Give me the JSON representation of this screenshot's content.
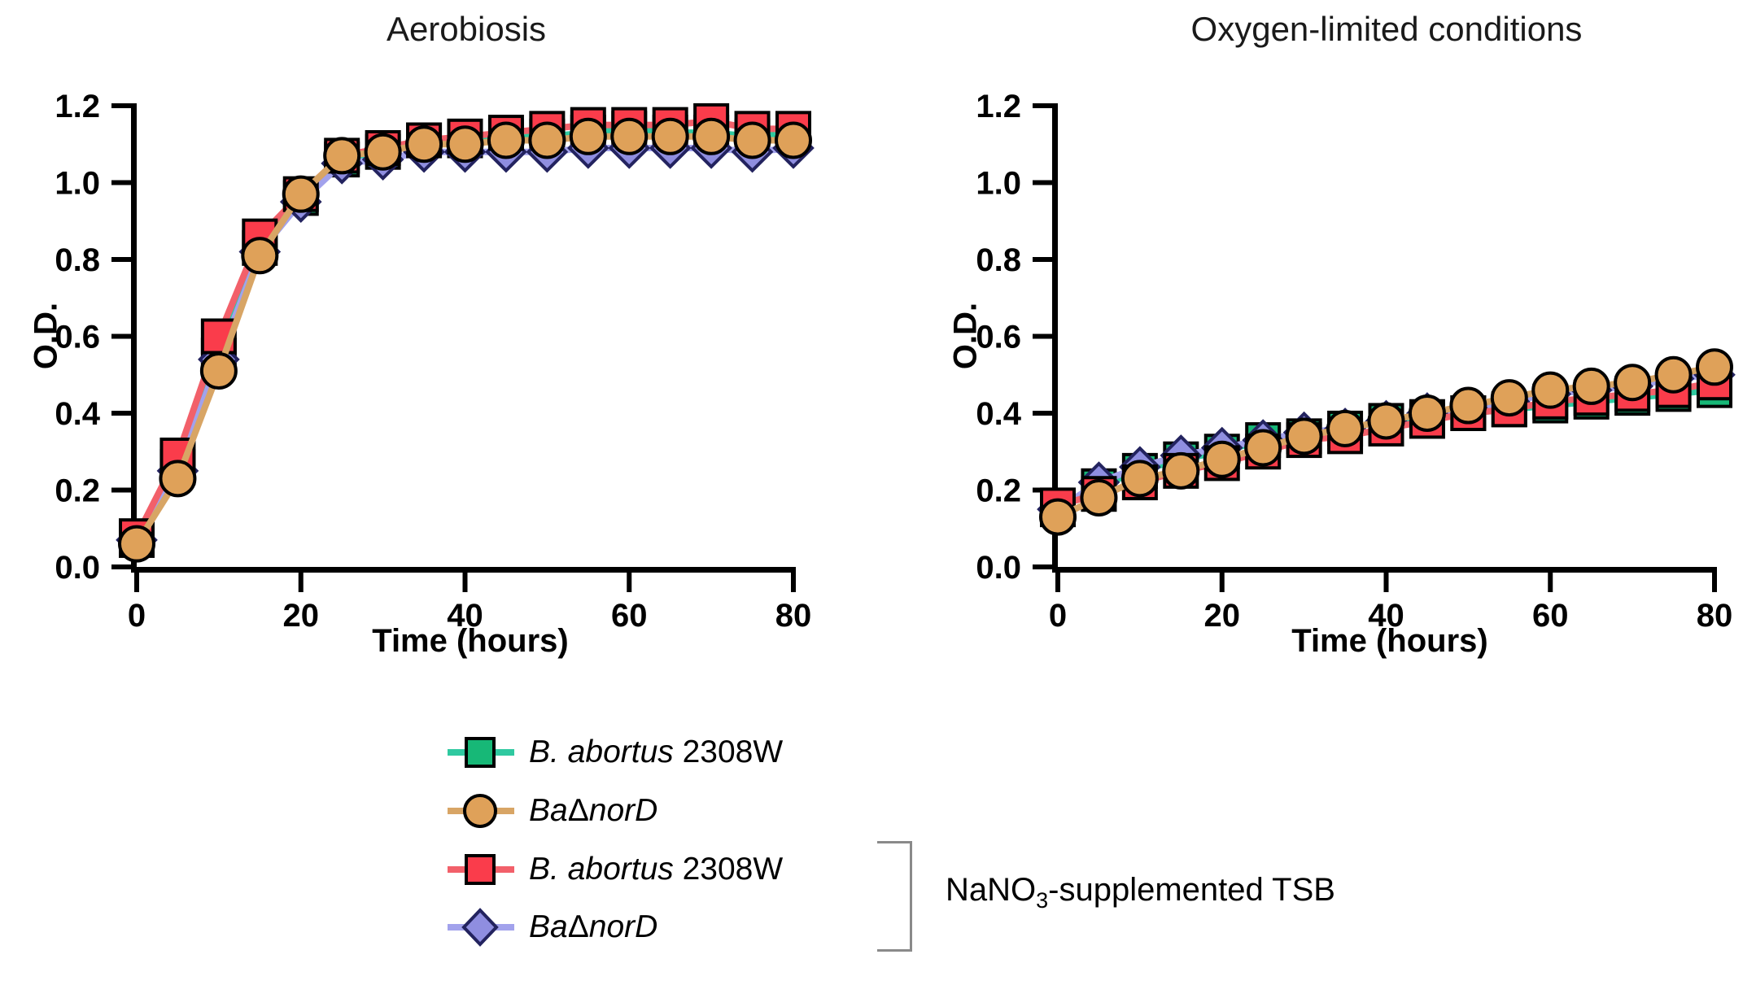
{
  "figure": {
    "background": "#ffffff",
    "text_color": "#000000"
  },
  "axis_labels": {
    "x": "Time (hours)",
    "y": "O.D."
  },
  "legend": {
    "items": [
      {
        "marker": "square",
        "fill": "#17B877",
        "line": "#2FC9A0",
        "border": "#000000",
        "label_parts": [
          {
            "text": "B. abortus",
            "italic": true
          },
          {
            "text": " 2308W",
            "italic": false
          }
        ]
      },
      {
        "marker": "circle",
        "fill": "#DFA159",
        "line": "#D8A565",
        "border": "#000000",
        "label_parts": [
          {
            "text": "Ba",
            "italic": true
          },
          {
            "text": "Δ",
            "italic": false
          },
          {
            "text": "norD",
            "italic": true
          }
        ]
      },
      {
        "marker": "square",
        "fill": "#FA3C4B",
        "line": "#F2606A",
        "border": "#000000",
        "label_parts": [
          {
            "text": "B. abortus",
            "italic": true
          },
          {
            "text": " 2308W",
            "italic": false
          }
        ]
      },
      {
        "marker": "diamond",
        "fill": "#8F8EE0",
        "line": "#A2A2EC",
        "border": "#23235F",
        "label_parts": [
          {
            "text": "Ba",
            "italic": true
          },
          {
            "text": "Δ",
            "italic": false
          },
          {
            "text": "norD",
            "italic": true
          }
        ]
      }
    ],
    "bracket_label": {
      "prefix": "NaNO",
      "sub": "3",
      "suffix": "-supplemented TSB"
    }
  },
  "chart_data": [
    {
      "type": "line",
      "title": "Aerobiosis",
      "xlabel": "Time (hours)",
      "ylabel": "O.D.",
      "xlim": [
        0,
        80
      ],
      "ylim": [
        0.0,
        1.2
      ],
      "x_ticks": [
        "0",
        "20",
        "40",
        "60",
        "80"
      ],
      "y_ticks": [
        "0.0",
        "0.2",
        "0.4",
        "0.6",
        "0.8",
        "1.0",
        "1.2"
      ],
      "grid": false,
      "x": [
        0,
        5,
        10,
        15,
        20,
        25,
        30,
        35,
        40,
        45,
        50,
        55,
        60,
        65,
        70,
        75,
        80
      ],
      "series": [
        {
          "name": "B. abortus 2308W",
          "marker": "square",
          "fill": "#17B877",
          "line": "#2FC9A0",
          "border": "#000000",
          "values": [
            0.07,
            0.26,
            0.55,
            0.83,
            0.96,
            1.06,
            1.08,
            1.11,
            1.11,
            1.12,
            1.12,
            1.13,
            1.14,
            1.13,
            1.13,
            1.12,
            1.13
          ]
        },
        {
          "name": "BaΔnorD",
          "marker": "circle",
          "fill": "#DFA159",
          "line": "#D8A565",
          "border": "#000000",
          "values": [
            0.06,
            0.23,
            0.51,
            0.81,
            0.97,
            1.07,
            1.08,
            1.1,
            1.1,
            1.11,
            1.11,
            1.12,
            1.12,
            1.12,
            1.12,
            1.11,
            1.11
          ]
        },
        {
          "name": "B. abortus 2308W (NaNO3-supplemented TSB)",
          "marker": "square",
          "fill": "#FA3C4B",
          "line": "#F2606A",
          "border": "#000000",
          "values": [
            0.08,
            0.29,
            0.6,
            0.86,
            0.97,
            1.07,
            1.09,
            1.11,
            1.12,
            1.13,
            1.14,
            1.15,
            1.15,
            1.15,
            1.16,
            1.14,
            1.14
          ]
        },
        {
          "name": "BaΔnorD (NaNO3-supplemented TSB)",
          "marker": "diamond",
          "fill": "#8F8EE0",
          "line": "#A2A2EC",
          "border": "#23235F",
          "values": [
            0.07,
            0.25,
            0.54,
            0.82,
            0.95,
            1.05,
            1.06,
            1.08,
            1.08,
            1.08,
            1.08,
            1.09,
            1.09,
            1.09,
            1.09,
            1.08,
            1.09
          ]
        }
      ]
    },
    {
      "type": "line",
      "title": "Oxygen-limited conditions",
      "xlabel": "Time (hours)",
      "ylabel": "O.D.",
      "xlim": [
        0,
        80
      ],
      "ylim": [
        0.0,
        1.2
      ],
      "x_ticks": [
        "0",
        "20",
        "40",
        "60",
        "80"
      ],
      "y_ticks": [
        "0.0",
        "0.2",
        "0.4",
        "0.6",
        "0.8",
        "1.0",
        "1.2"
      ],
      "grid": false,
      "x": [
        0,
        5,
        10,
        15,
        20,
        25,
        30,
        35,
        40,
        45,
        50,
        55,
        60,
        65,
        70,
        75,
        80
      ],
      "series": [
        {
          "name": "B. abortus 2308W",
          "marker": "square",
          "fill": "#17B877",
          "line": "#2FC9A0",
          "border": "#000000",
          "values": [
            0.15,
            0.21,
            0.25,
            0.28,
            0.3,
            0.33,
            0.34,
            0.36,
            0.38,
            0.39,
            0.4,
            0.41,
            0.42,
            0.43,
            0.44,
            0.45,
            0.46
          ]
        },
        {
          "name": "BaΔnorD",
          "marker": "circle",
          "fill": "#DFA159",
          "line": "#D8A565",
          "border": "#000000",
          "values": [
            0.13,
            0.18,
            0.23,
            0.25,
            0.28,
            0.31,
            0.34,
            0.36,
            0.38,
            0.4,
            0.42,
            0.44,
            0.46,
            0.47,
            0.48,
            0.5,
            0.52
          ]
        },
        {
          "name": "B. abortus 2308W (NaNO3-supplemented TSB)",
          "marker": "square",
          "fill": "#FA3C4B",
          "line": "#F2606A",
          "border": "#000000",
          "values": [
            0.16,
            0.19,
            0.22,
            0.25,
            0.27,
            0.3,
            0.33,
            0.34,
            0.36,
            0.38,
            0.4,
            0.41,
            0.43,
            0.44,
            0.45,
            0.46,
            0.48
          ]
        },
        {
          "name": "BaΔnorD (NaNO3-supplemented TSB)",
          "marker": "diamond",
          "fill": "#8F8EE0",
          "line": "#A2A2EC",
          "border": "#23235F",
          "values": [
            0.15,
            0.22,
            0.26,
            0.29,
            0.31,
            0.33,
            0.35,
            0.36,
            0.38,
            0.4,
            0.41,
            0.43,
            0.45,
            0.46,
            0.47,
            0.49,
            0.5
          ]
        }
      ]
    }
  ]
}
